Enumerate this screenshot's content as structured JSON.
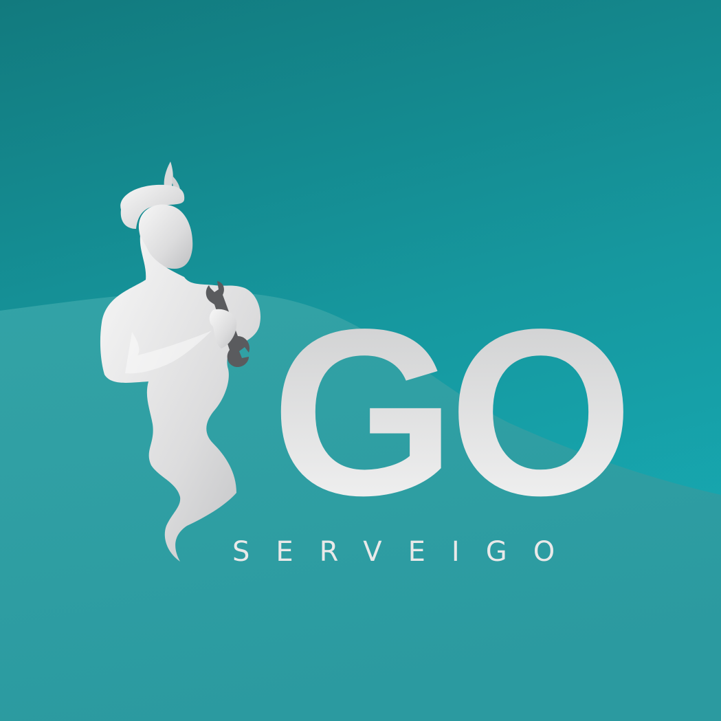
{
  "brand": {
    "monogram": "GO",
    "name": "SERVEIGO"
  },
  "icons": {
    "mascot": "genie-mascot-icon",
    "tool": "wrench-icon"
  },
  "colors": {
    "background_top": "#127a7e",
    "background_mid": "#17a4ad",
    "wave_lower": "#2d9ea3",
    "logo_light": "#f4f4f4",
    "logo_shade": "#c7c8ca",
    "wrench": "#5a5b5e"
  }
}
